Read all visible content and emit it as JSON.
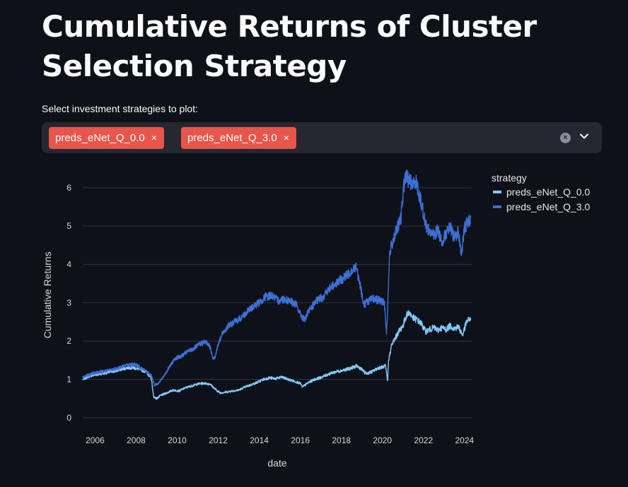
{
  "page": {
    "title": "Cumulative Returns of Cluster Selection Strategy"
  },
  "selector": {
    "label": "Select investment strategies to plot:",
    "selected": [
      "preds_eNet_Q_0.0",
      "preds_eNet_Q_3.0"
    ],
    "remove_glyph": "×",
    "clear_glyph": "×",
    "tag_color": "#e8554b"
  },
  "chart_data": {
    "type": "line",
    "title": "",
    "xlabel": "date",
    "ylabel": "Cumulative Returns",
    "xlim": [
      2005.4,
      2024.35
    ],
    "ylim": [
      -0.15,
      6.55
    ],
    "xticks": [
      "2006",
      "2008",
      "2010",
      "2012",
      "2014",
      "2016",
      "2018",
      "2020",
      "2022",
      "2024"
    ],
    "yticks": [
      "0",
      "1",
      "2",
      "3",
      "4",
      "5",
      "6"
    ],
    "grid": true,
    "legend": {
      "title": "strategy",
      "placement": "top-right"
    },
    "series": [
      {
        "name": "preds_eNet_Q_0.0",
        "color": "#83c9ff",
        "x": [
          2005.4,
          2005.7,
          2006.0,
          2006.3,
          2006.6,
          2007.0,
          2007.3,
          2007.6,
          2007.9,
          2008.2,
          2008.5,
          2008.75,
          2008.85,
          2009.0,
          2009.2,
          2009.5,
          2009.8,
          2010.1,
          2010.4,
          2010.7,
          2011.0,
          2011.3,
          2011.6,
          2011.9,
          2012.1,
          2012.4,
          2012.7,
          2013.0,
          2013.3,
          2013.6,
          2013.9,
          2014.2,
          2014.5,
          2014.8,
          2015.1,
          2015.4,
          2015.7,
          2016.0,
          2016.1,
          2016.4,
          2016.7,
          2017.0,
          2017.3,
          2017.6,
          2017.9,
          2018.2,
          2018.5,
          2018.75,
          2018.95,
          2019.2,
          2019.5,
          2019.8,
          2020.0,
          2020.15,
          2020.25,
          2020.3,
          2020.45,
          2020.6,
          2020.8,
          2021.0,
          2021.15,
          2021.3,
          2021.5,
          2021.7,
          2021.9,
          2022.1,
          2022.3,
          2022.5,
          2022.7,
          2022.9,
          2023.1,
          2023.3,
          2023.5,
          2023.7,
          2023.9,
          2024.1,
          2024.3
        ],
        "values": [
          1.0,
          1.08,
          1.12,
          1.15,
          1.18,
          1.22,
          1.27,
          1.31,
          1.3,
          1.26,
          1.2,
          1.0,
          0.55,
          0.5,
          0.58,
          0.65,
          0.72,
          0.7,
          0.78,
          0.83,
          0.88,
          0.9,
          0.88,
          0.72,
          0.65,
          0.67,
          0.7,
          0.72,
          0.8,
          0.86,
          0.92,
          1.0,
          1.04,
          1.02,
          1.06,
          1.0,
          0.95,
          0.9,
          0.8,
          0.92,
          1.0,
          1.05,
          1.12,
          1.18,
          1.22,
          1.25,
          1.3,
          1.35,
          1.28,
          1.15,
          1.2,
          1.3,
          1.32,
          1.35,
          0.95,
          1.5,
          1.9,
          2.05,
          2.25,
          2.4,
          2.65,
          2.75,
          2.6,
          2.55,
          2.45,
          2.25,
          2.3,
          2.35,
          2.28,
          2.35,
          2.3,
          2.4,
          2.32,
          2.38,
          2.15,
          2.5,
          2.6
        ]
      },
      {
        "name": "preds_eNet_Q_3.0",
        "color": "#3d6fd8",
        "x": [
          2005.4,
          2005.7,
          2006.0,
          2006.3,
          2006.6,
          2007.0,
          2007.3,
          2007.6,
          2007.9,
          2008.2,
          2008.5,
          2008.75,
          2008.9,
          2009.1,
          2009.3,
          2009.6,
          2009.9,
          2010.2,
          2010.5,
          2010.8,
          2011.1,
          2011.4,
          2011.6,
          2011.75,
          2011.85,
          2012.0,
          2012.2,
          2012.5,
          2012.8,
          2013.1,
          2013.4,
          2013.7,
          2014.0,
          2014.3,
          2014.6,
          2014.9,
          2015.2,
          2015.5,
          2015.8,
          2016.0,
          2016.2,
          2016.5,
          2016.8,
          2017.1,
          2017.4,
          2017.7,
          2018.0,
          2018.3,
          2018.5,
          2018.7,
          2018.9,
          2019.1,
          2019.3,
          2019.6,
          2019.9,
          2020.1,
          2020.2,
          2020.25,
          2020.35,
          2020.5,
          2020.7,
          2020.9,
          2021.0,
          2021.1,
          2021.3,
          2021.5,
          2021.6,
          2021.75,
          2021.9,
          2022.1,
          2022.3,
          2022.5,
          2022.7,
          2022.9,
          2023.1,
          2023.3,
          2023.5,
          2023.7,
          2023.85,
          2024.0,
          2024.15,
          2024.3
        ],
        "values": [
          1.05,
          1.12,
          1.18,
          1.2,
          1.22,
          1.28,
          1.33,
          1.38,
          1.4,
          1.32,
          1.2,
          1.1,
          0.85,
          0.9,
          1.05,
          1.3,
          1.55,
          1.6,
          1.72,
          1.8,
          1.92,
          1.98,
          1.85,
          1.55,
          1.6,
          1.9,
          2.2,
          2.4,
          2.5,
          2.6,
          2.75,
          2.9,
          3.0,
          3.15,
          3.2,
          3.05,
          3.1,
          3.05,
          2.95,
          2.7,
          2.55,
          2.85,
          3.05,
          3.15,
          3.35,
          3.5,
          3.6,
          3.72,
          3.85,
          3.95,
          3.5,
          2.95,
          3.05,
          3.1,
          3.05,
          3.0,
          2.2,
          2.8,
          4.3,
          4.6,
          4.9,
          5.2,
          5.8,
          6.3,
          6.2,
          6.05,
          6.25,
          5.9,
          5.6,
          5.05,
          4.85,
          4.75,
          4.9,
          4.6,
          4.8,
          4.95,
          4.7,
          4.85,
          4.25,
          4.95,
          5.1,
          5.2
        ]
      }
    ]
  }
}
